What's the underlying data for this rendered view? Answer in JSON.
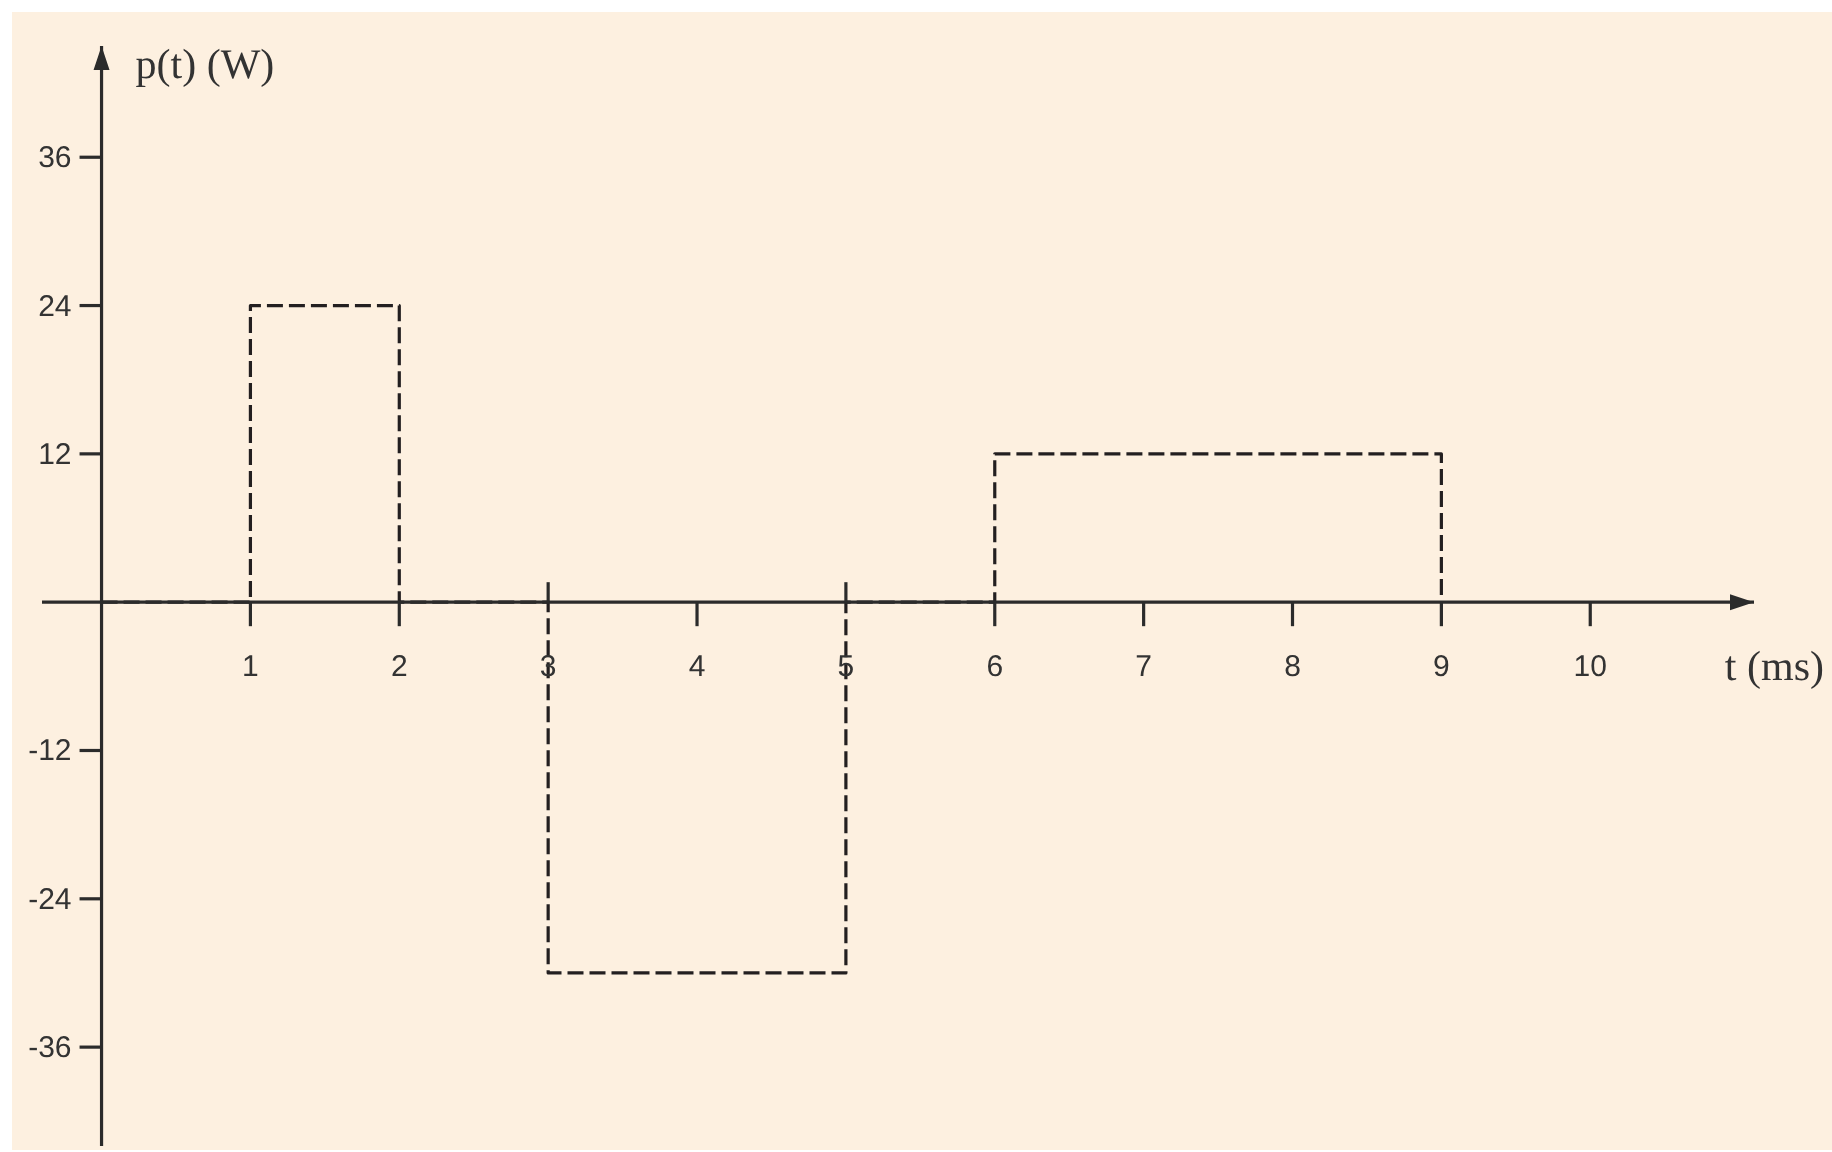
{
  "chart_data": {
    "type": "step",
    "x": [
      0,
      1,
      2,
      3,
      5,
      6,
      9
    ],
    "values": [
      0,
      24,
      0,
      -30,
      0,
      12,
      0
    ],
    "color": "#231f20",
    "line_style": "dashed",
    "xlabel": "t (ms)",
    "ylabel": "p(t) (W)",
    "xlim": [
      -0.4,
      11.1
    ],
    "ylim": [
      -44,
      45
    ],
    "xticks": [
      1,
      2,
      3,
      4,
      5,
      6,
      7,
      8,
      9,
      10
    ],
    "yticks": [
      -36,
      -24,
      -12,
      12,
      24,
      36
    ]
  }
}
